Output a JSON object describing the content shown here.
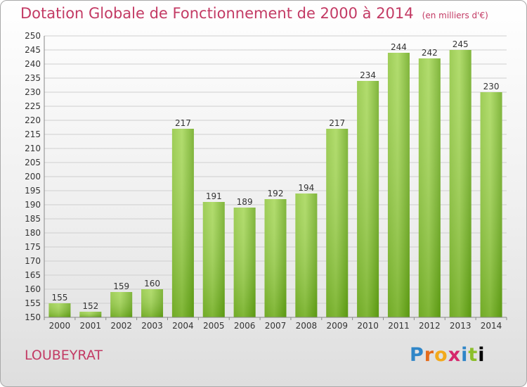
{
  "title": "Dotation Globale de Fonctionnement de 2000 à 2014",
  "unit": "(en milliers d'€)",
  "place": "LOUBEYRAT",
  "logo_text": "Proxiti",
  "colors": {
    "title": "#c33a64",
    "bar_light": "#9fd24f",
    "bar_dark": "#5e9e10",
    "grid": "#d0d0d0"
  },
  "chart_data": {
    "type": "bar",
    "categories": [
      "2000",
      "2001",
      "2002",
      "2003",
      "2004",
      "2005",
      "2006",
      "2007",
      "2008",
      "2009",
      "2010",
      "2011",
      "2012",
      "2013",
      "2014"
    ],
    "values": [
      155,
      152,
      159,
      160,
      217,
      191,
      189,
      192,
      194,
      217,
      234,
      244,
      242,
      245,
      230
    ],
    "ylim": [
      150,
      250
    ],
    "yticks": [
      150,
      155,
      160,
      165,
      170,
      175,
      180,
      185,
      190,
      195,
      200,
      205,
      210,
      215,
      220,
      225,
      230,
      235,
      240,
      245,
      250
    ],
    "grid": true
  }
}
